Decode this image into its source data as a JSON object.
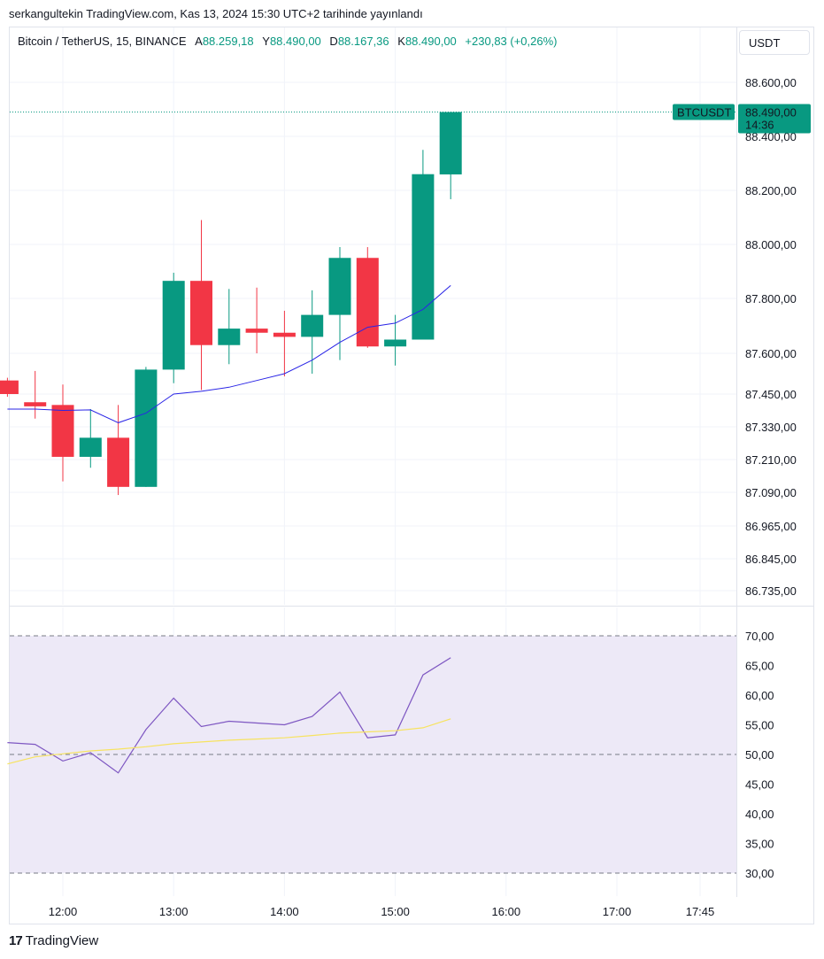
{
  "header": {
    "published_line": "serkangultekin TradingView.com, Kas 13, 2024 15:30 UTC+2 tarihinde yayınlandı"
  },
  "legend": {
    "symbol": "Bitcoin / TetherUS, 15, BINANCE",
    "open_label": "A",
    "open_value": "88.259,18",
    "high_label": "Y",
    "high_value": "88.490,00",
    "low_label": "D",
    "low_value": "88.167,36",
    "close_label": "K",
    "close_value": "88.490,00",
    "change": "+230,83 (+0,26%)"
  },
  "currency_button": "USDT",
  "price_badge": {
    "symbol": "BTCUSDT",
    "price": "88.490,00",
    "countdown": "14:36"
  },
  "footer": {
    "brand": "TradingView",
    "logo_glyph": "17"
  },
  "colors": {
    "up": "#089981",
    "down": "#f23645",
    "ma_line": "#2a25e6",
    "rsi_line": "#7e57c2",
    "rsi_ma": "#f7e35f",
    "rsi_band": "#ede9f7"
  },
  "chart_data": [
    {
      "type": "candlestick",
      "ylabels": [
        "88.600,00",
        "88.400,00",
        "88.200,00",
        "88.000,00",
        "87.800,00",
        "87.600,00",
        "87.450,00",
        "87.330,00",
        "87.210,00",
        "87.090,00",
        "86.965,00",
        "86.845,00",
        "86.735,00"
      ],
      "candles": [
        {
          "t": "11:30",
          "o": 87500,
          "h": 87510,
          "l": 87440,
          "c": 87450
        },
        {
          "t": "11:45",
          "o": 87420,
          "h": 87535,
          "l": 87360,
          "c": 87405
        },
        {
          "t": "12:00",
          "o": 87410,
          "h": 87485,
          "l": 87130,
          "c": 87220
        },
        {
          "t": "12:15",
          "o": 87220,
          "h": 87395,
          "l": 87180,
          "c": 87290
        },
        {
          "t": "12:30",
          "o": 87290,
          "h": 87410,
          "l": 87080,
          "c": 87110
        },
        {
          "t": "12:45",
          "o": 87110,
          "h": 87550,
          "l": 87110,
          "c": 87540
        },
        {
          "t": "13:00",
          "o": 87540,
          "h": 87895,
          "l": 87490,
          "c": 87865
        },
        {
          "t": "13:15",
          "o": 87865,
          "h": 88090,
          "l": 87465,
          "c": 87630
        },
        {
          "t": "13:30",
          "o": 87630,
          "h": 87835,
          "l": 87560,
          "c": 87690
        },
        {
          "t": "13:45",
          "o": 87690,
          "h": 87840,
          "l": 87600,
          "c": 87675
        },
        {
          "t": "14:00",
          "o": 87675,
          "h": 87755,
          "l": 87515,
          "c": 87660
        },
        {
          "t": "14:15",
          "o": 87660,
          "h": 87830,
          "l": 87525,
          "c": 87740
        },
        {
          "t": "14:30",
          "o": 87740,
          "h": 87990,
          "l": 87575,
          "c": 87950
        },
        {
          "t": "14:45",
          "o": 87950,
          "h": 87990,
          "l": 87620,
          "c": 87625
        },
        {
          "t": "15:00",
          "o": 87625,
          "h": 87740,
          "l": 87555,
          "c": 87650
        },
        {
          "t": "15:15",
          "o": 87650,
          "h": 88350,
          "l": 87650,
          "c": 88260
        },
        {
          "t": "15:30",
          "o": 88259.18,
          "h": 88490,
          "l": 88167.36,
          "c": 88490
        }
      ],
      "moving_average": [
        87395,
        87395,
        87390,
        87392,
        87345,
        87380,
        87450,
        87460,
        87475,
        87500,
        87525,
        87575,
        87640,
        87695,
        87710,
        87760,
        87848
      ],
      "last_price": 88490
    },
    {
      "type": "line",
      "ylabels": [
        "70,00",
        "65,00",
        "60,00",
        "55,00",
        "50,00",
        "45,00",
        "40,00",
        "35,00",
        "30,00"
      ],
      "ylim": [
        30,
        70
      ],
      "band": [
        30,
        70
      ],
      "midline": 50,
      "series": [
        {
          "values": [
            52.0,
            51.7,
            48.9,
            50.3,
            46.9,
            54.2,
            59.5,
            54.7,
            55.6,
            55.3,
            55.0,
            56.4,
            60.5,
            52.8,
            53.3,
            63.4,
            66.3
          ]
        },
        {
          "values": [
            48.4,
            49.6,
            50.1,
            50.6,
            50.9,
            51.3,
            51.8,
            52.1,
            52.4,
            52.6,
            52.8,
            53.2,
            53.6,
            53.8,
            54.0,
            54.5,
            56.0
          ]
        }
      ]
    }
  ],
  "time_axis": [
    "12:00",
    "13:00",
    "14:00",
    "15:00",
    "16:00",
    "17:00",
    "17:45"
  ]
}
